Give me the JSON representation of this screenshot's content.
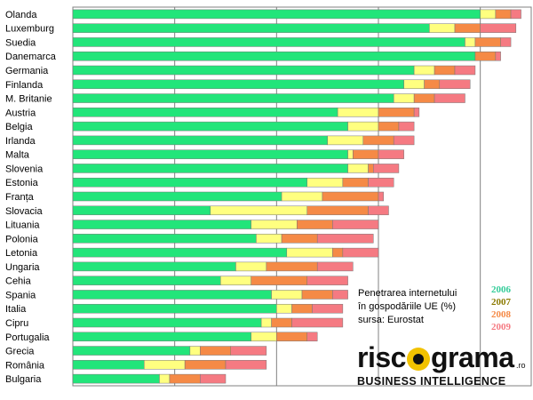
{
  "chart_data": {
    "type": "bar",
    "orientation": "horizontal",
    "stacked": true,
    "stack_mode": "incremental",
    "title": "Penetrarea internetului în gospodăriile UE (%)",
    "source": "sursa: Eurostat",
    "categories": [
      "Olanda",
      "Luxemburg",
      "Suedia",
      "Danemarca",
      "Germania",
      "Finlanda",
      "M. Britanie",
      "Austria",
      "Belgia",
      "Irlanda",
      "Malta",
      "Slovenia",
      "Estonia",
      "Franța",
      "Slovacia",
      "Lituania",
      "Polonia",
      "Letonia",
      "Ungaria",
      "Cehia",
      "Spania",
      "Italia",
      "Cipru",
      "Portugalia",
      "Grecia",
      "România",
      "Bulgaria"
    ],
    "series": [
      {
        "name": "2006",
        "color": "#22e57a",
        "values": [
          80,
          70,
          77,
          79,
          67,
          65,
          63,
          52,
          54,
          50,
          54,
          54,
          46,
          41,
          27,
          35,
          36,
          42,
          32,
          29,
          39,
          40,
          37,
          35,
          23,
          14,
          17
        ]
      },
      {
        "name": "2007",
        "color": "#ffff80",
        "values": [
          3,
          5,
          2,
          0,
          4,
          4,
          4,
          8,
          6,
          7,
          1,
          4,
          7,
          8,
          19,
          9,
          5,
          9,
          6,
          6,
          6,
          3,
          2,
          5,
          2,
          8,
          2
        ]
      },
      {
        "name": "2008",
        "color": "#f58a46",
        "values": [
          3,
          5,
          5,
          4,
          4,
          3,
          4,
          7,
          4,
          6,
          5,
          1,
          5,
          11,
          12,
          7,
          7,
          2,
          10,
          11,
          6,
          4,
          4,
          6,
          6,
          8,
          6
        ]
      },
      {
        "name": "2009",
        "color": "#f57a82",
        "values": [
          2,
          7,
          2,
          1,
          4,
          6,
          6,
          1,
          3,
          4,
          5,
          5,
          5,
          1,
          4,
          9,
          11,
          7,
          7,
          8,
          3,
          6,
          10,
          2,
          7,
          8,
          5
        ]
      }
    ],
    "xlim": [
      0,
      90
    ],
    "grid": true,
    "legend": [
      "2006",
      "2007",
      "2008",
      "2009"
    ],
    "legend_placement": "bottom-right"
  },
  "note": {
    "line1": "Penetrarea internetului",
    "line2": "în gospodăriile UE (%)",
    "line3": "sursa: Eurostat"
  },
  "legend_colors": {
    "2006": "#33cc99",
    "2007": "#8b7a00",
    "2008": "#f58a46",
    "2009": "#f57a82"
  },
  "logo": {
    "text_pre": "risc",
    "text_post": "grama",
    "suffix": ".ro",
    "tagline": "BUSINESS INTELLIGENCE"
  }
}
